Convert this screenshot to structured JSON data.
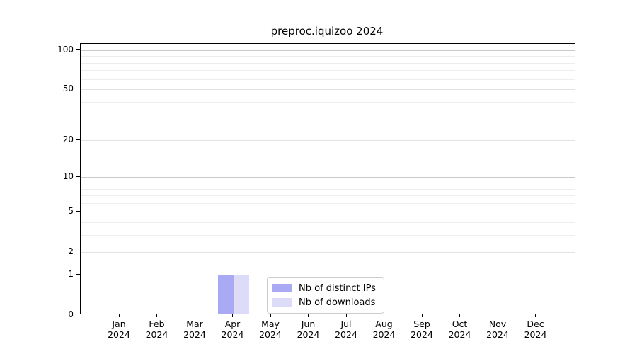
{
  "page": {
    "background": "#ffffff"
  },
  "chart_data": {
    "type": "bar",
    "title": "preproc.iquizoo 2024",
    "x_axis": {
      "months": [
        "Jan",
        "Feb",
        "Mar",
        "Apr",
        "May",
        "Jun",
        "Jul",
        "Aug",
        "Sep",
        "Oct",
        "Nov",
        "Dec"
      ],
      "year": "2024"
    },
    "y_axis": {
      "scale": "log1p",
      "tick_values": [
        0,
        1,
        2,
        5,
        10,
        20,
        50,
        100
      ],
      "major_decades": [
        1,
        10,
        100
      ],
      "minor_gridlines": [
        3,
        4,
        6,
        7,
        8,
        9,
        30,
        40,
        60,
        70,
        80,
        90
      ],
      "range": [
        0,
        111
      ]
    },
    "series": [
      {
        "name": "Nb of distinct IPs",
        "color": "#a9a9f4",
        "values": [
          0,
          0,
          0,
          1,
          0,
          0,
          0,
          0,
          0,
          0,
          0,
          0
        ]
      },
      {
        "name": "Nb of downloads",
        "color": "#dcdcf8",
        "values": [
          0,
          0,
          0,
          1,
          0,
          0,
          0,
          0,
          0,
          0,
          0,
          0
        ]
      }
    ],
    "legend": {
      "position": "lower center"
    },
    "grid": true,
    "colors": {
      "major_gridline": "#c9c9c9",
      "mid_gridline": "#e2e2e2",
      "minor_gridline": "#ededed",
      "axis": "#000000"
    }
  }
}
